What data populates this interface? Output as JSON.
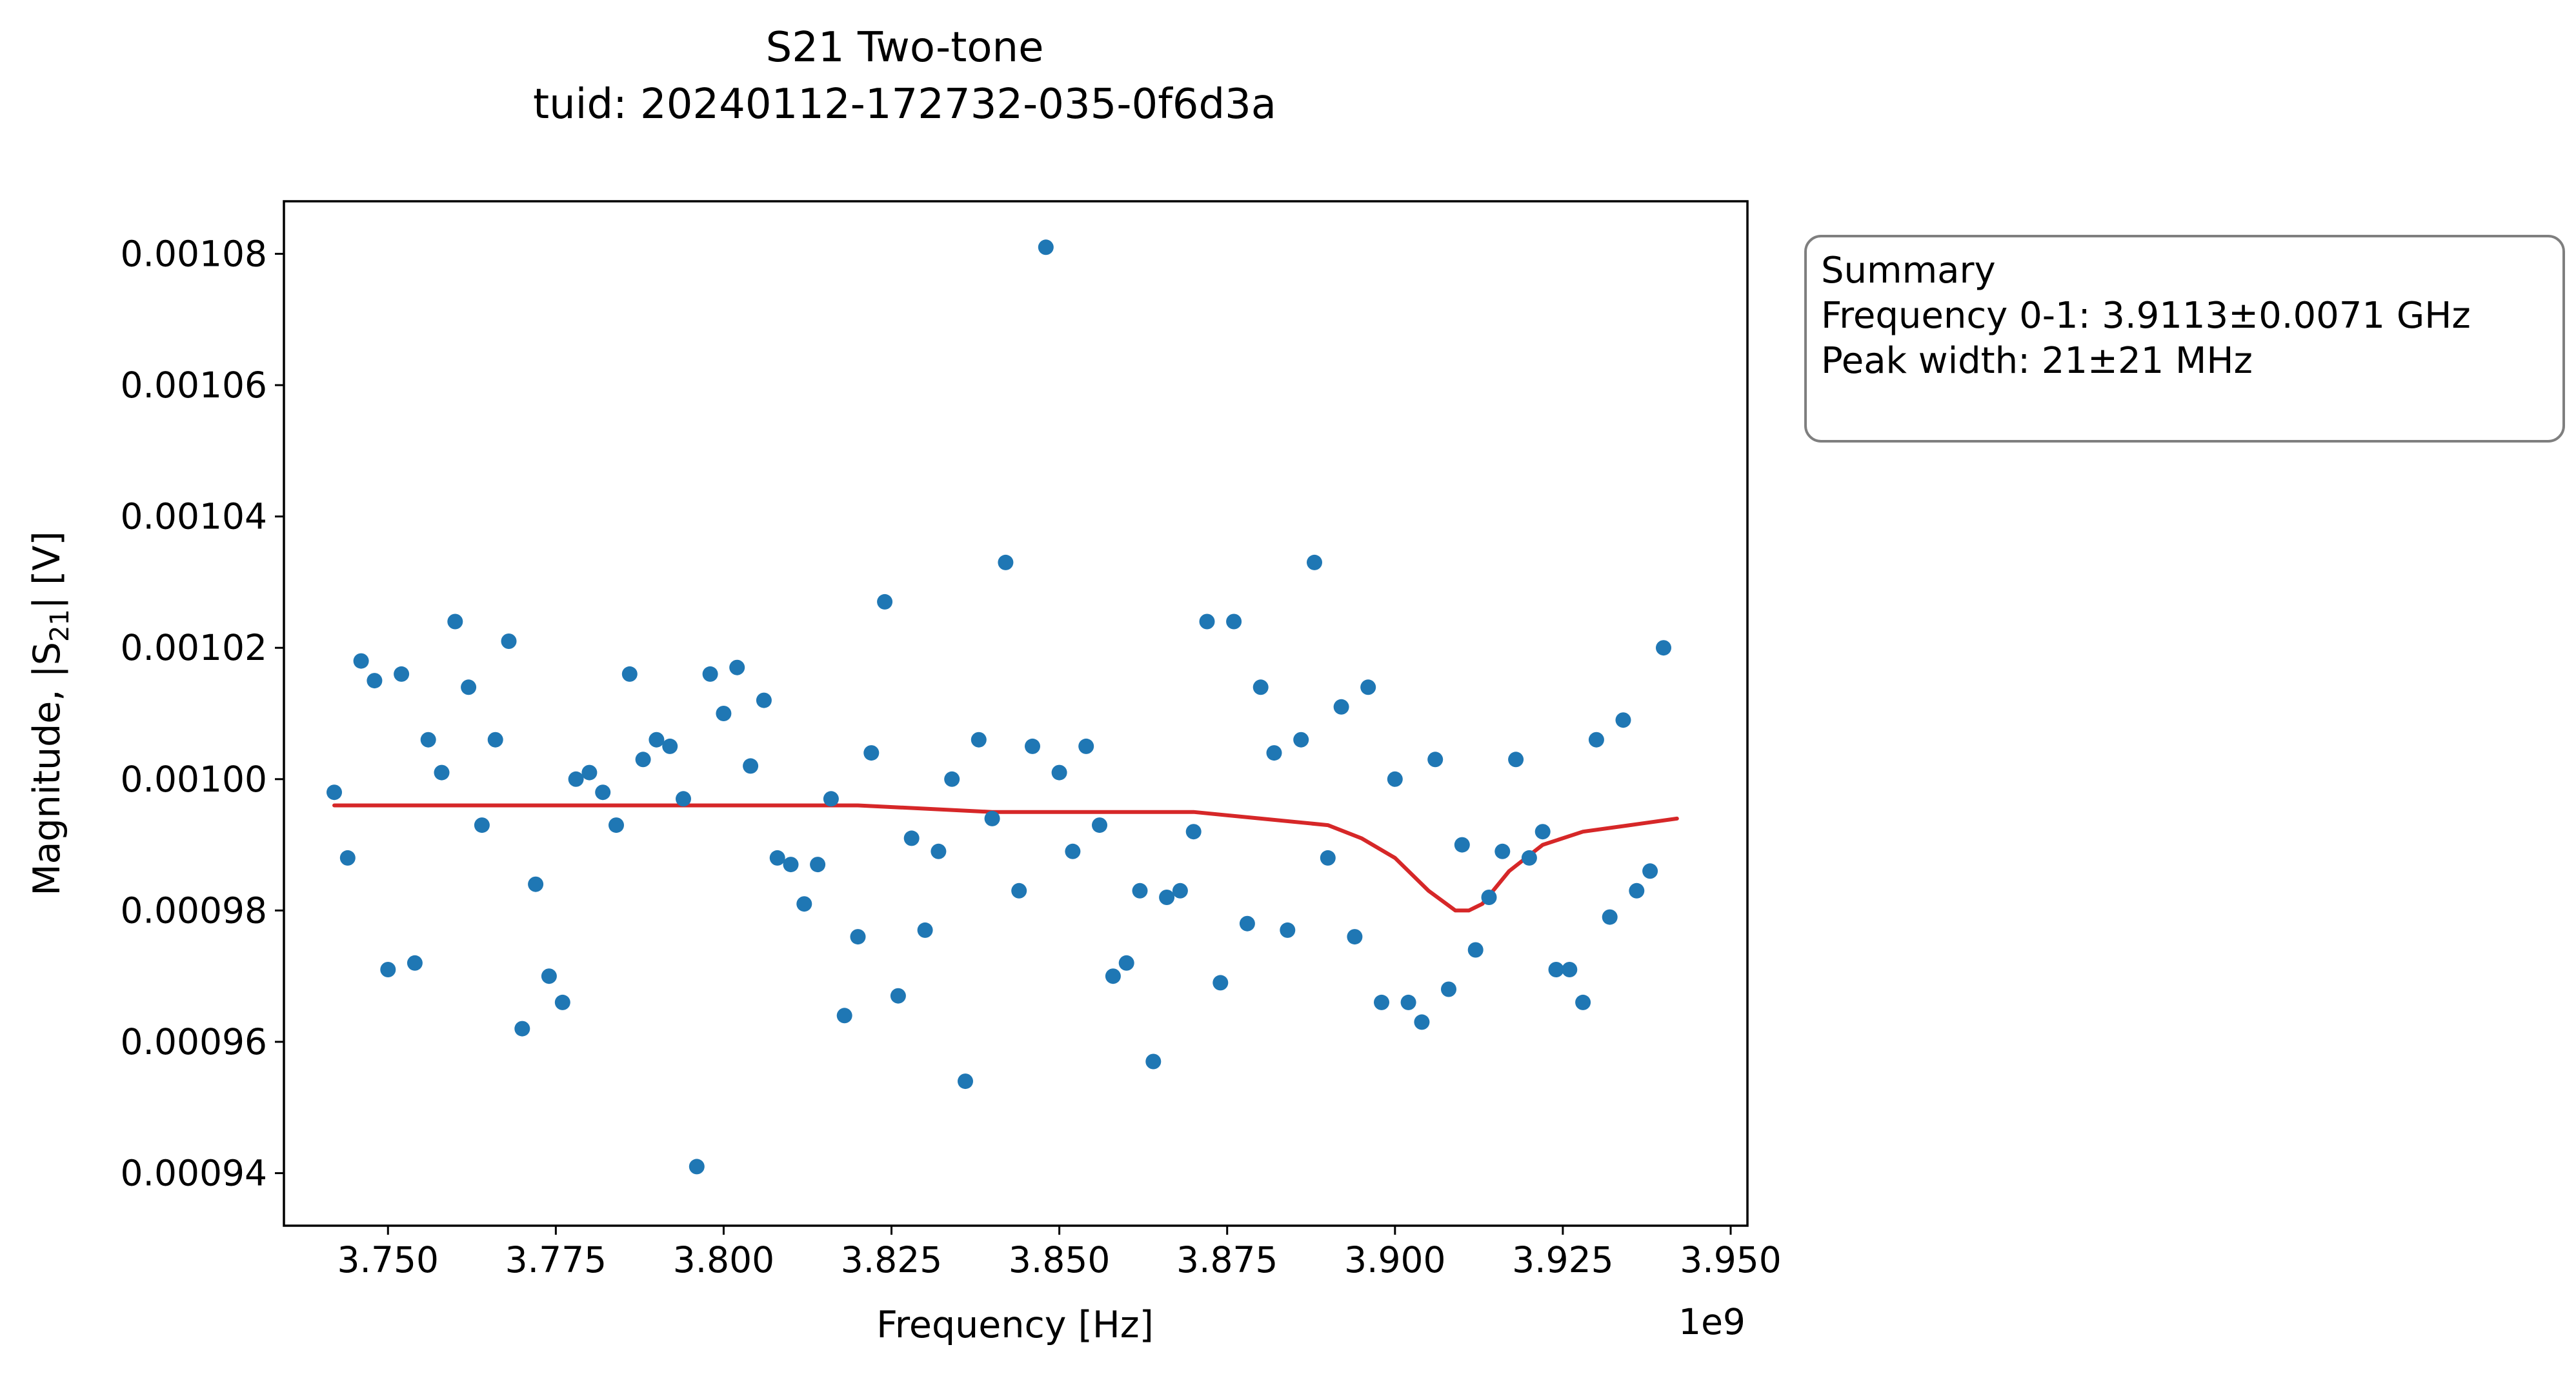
{
  "chart_data": {
    "type": "scatter",
    "title": "S21 Two-tone",
    "subtitle": "tuid: 20240112-172732-035-0f6d3a",
    "xlabel": "Frequency [Hz]",
    "ylabel_prefix": "Magnitude, |S",
    "ylabel_sub": "21",
    "ylabel_suffix": "| [V]",
    "x_offset_label": "1e9",
    "xlim": [
      3.7345,
      3.9525
    ],
    "ylim": [
      0.000932,
      0.001088
    ],
    "xticks": [
      3.75,
      3.775,
      3.8,
      3.825,
      3.85,
      3.875,
      3.9,
      3.925,
      3.95
    ],
    "xtick_labels": [
      "3.750",
      "3.775",
      "3.800",
      "3.825",
      "3.850",
      "3.875",
      "3.900",
      "3.925",
      "3.950"
    ],
    "yticks": [
      0.00094,
      0.00096,
      0.00098,
      0.001,
      0.00102,
      0.00104,
      0.00106,
      0.00108
    ],
    "ytick_labels": [
      "0.00094",
      "0.00096",
      "0.00098",
      "0.00100",
      "0.00102",
      "0.00104",
      "0.00106",
      "0.00108"
    ],
    "grid": false,
    "series": [
      {
        "kind": "scatter",
        "color": "#1f77b4",
        "x": [
          3.742,
          3.744,
          3.746,
          3.748,
          3.75,
          3.752,
          3.754,
          3.756,
          3.758,
          3.76,
          3.762,
          3.764,
          3.766,
          3.768,
          3.77,
          3.772,
          3.774,
          3.776,
          3.778,
          3.78,
          3.782,
          3.784,
          3.786,
          3.788,
          3.79,
          3.792,
          3.794,
          3.796,
          3.798,
          3.8,
          3.802,
          3.804,
          3.806,
          3.808,
          3.81,
          3.812,
          3.814,
          3.816,
          3.818,
          3.82,
          3.822,
          3.824,
          3.826,
          3.828,
          3.83,
          3.832,
          3.834,
          3.836,
          3.838,
          3.84,
          3.842,
          3.844,
          3.846,
          3.848,
          3.85,
          3.852,
          3.854,
          3.856,
          3.858,
          3.86,
          3.862,
          3.864,
          3.866,
          3.868,
          3.87,
          3.872,
          3.874,
          3.876,
          3.878,
          3.88,
          3.882,
          3.884,
          3.886,
          3.888,
          3.89,
          3.892,
          3.894,
          3.896,
          3.898,
          3.9,
          3.902,
          3.904,
          3.906,
          3.908,
          3.91,
          3.912,
          3.914,
          3.916,
          3.918,
          3.92,
          3.922,
          3.924,
          3.926,
          3.928,
          3.93,
          3.932,
          3.934,
          3.936,
          3.938,
          3.94
        ],
        "y": [
          0.000998,
          0.000988,
          0.001018,
          0.001015,
          0.000971,
          0.001016,
          0.000972,
          0.001006,
          0.001001,
          0.001024,
          0.001014,
          0.000993,
          0.001006,
          0.001021,
          0.000962,
          0.000984,
          0.00097,
          0.000966,
          0.001,
          0.001001,
          0.000998,
          0.000993,
          0.001016,
          0.001003,
          0.001006,
          0.001005,
          0.000997,
          0.000941,
          0.001016,
          0.00101,
          0.001017,
          0.001002,
          0.001012,
          0.000988,
          0.000987,
          0.000981,
          0.000987,
          0.000997,
          0.000964,
          0.000976,
          0.001004,
          0.001027,
          0.000967,
          0.000991,
          0.000977,
          0.000989,
          0.001,
          0.000954,
          0.001006,
          0.000994,
          0.001033,
          0.000983,
          0.001005,
          0.001081,
          0.001001,
          0.000989,
          0.001005,
          0.000993,
          0.00097,
          0.000972,
          0.000983,
          0.000957,
          0.000982,
          0.000983,
          0.000992,
          0.001024,
          0.000969,
          0.001024,
          0.000978,
          0.001014,
          0.001004,
          0.000977,
          0.001006,
          0.001033,
          0.000988,
          0.001011,
          0.000976,
          0.001014,
          0.000966,
          0.001,
          0.000966,
          0.000963,
          0.001003,
          0.000968,
          0.00099,
          0.000974,
          0.000982,
          0.000989,
          0.001003,
          0.000988,
          0.000992,
          0.000971,
          0.000971,
          0.000966,
          0.001006,
          0.000979,
          0.001009,
          0.000983,
          0.000986,
          0.00102
        ]
      },
      {
        "kind": "line",
        "color": "#d62728",
        "x": [
          3.742,
          3.76,
          3.78,
          3.8,
          3.82,
          3.84,
          3.86,
          3.87,
          3.88,
          3.89,
          3.895,
          3.9,
          3.905,
          3.909,
          3.911,
          3.913,
          3.917,
          3.922,
          3.928,
          3.935,
          3.942
        ],
        "y": [
          0.000996,
          0.000996,
          0.000996,
          0.000996,
          0.000996,
          0.000995,
          0.000995,
          0.000995,
          0.000994,
          0.000993,
          0.000991,
          0.000988,
          0.000983,
          0.00098,
          0.00098,
          0.000981,
          0.000986,
          0.00099,
          0.000992,
          0.000993,
          0.000994
        ]
      }
    ],
    "annotation_box": {
      "lines": [
        "Summary",
        "Frequency 0-1: 3.9113±0.0071 GHz",
        "Peak width: 21±21 MHz"
      ],
      "placement": "right of plot, top"
    }
  }
}
